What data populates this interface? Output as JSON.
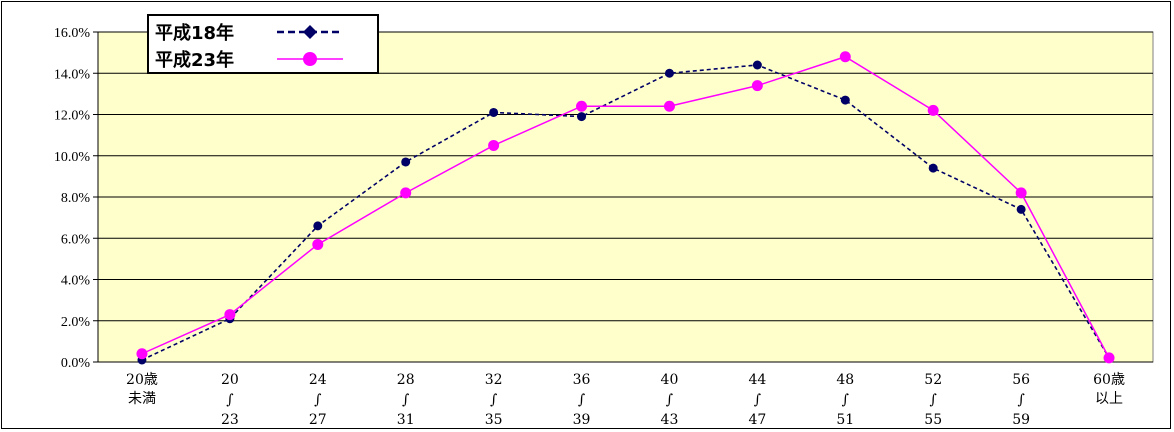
{
  "chart_data": {
    "type": "line",
    "categories": [
      [
        "20歳",
        "未満"
      ],
      [
        "20",
        "∫",
        "23"
      ],
      [
        "24",
        "∫",
        "27"
      ],
      [
        "28",
        "∫",
        "31"
      ],
      [
        "32",
        "∫",
        "35"
      ],
      [
        "36",
        "∫",
        "39"
      ],
      [
        "40",
        "∫",
        "43"
      ],
      [
        "44",
        "∫",
        "47"
      ],
      [
        "48",
        "∫",
        "51"
      ],
      [
        "52",
        "∫",
        "55"
      ],
      [
        "56",
        "∫",
        "59"
      ],
      [
        "60歳",
        "以上"
      ]
    ],
    "y_ticks": [
      "0.0%",
      "2.0%",
      "4.0%",
      "6.0%",
      "8.0%",
      "10.0%",
      "12.0%",
      "14.0%",
      "16.0%"
    ],
    "ylim": [
      0,
      16
    ],
    "unit": "%",
    "grid": true,
    "legend_position": "top-left",
    "series": [
      {
        "name": "平成18年",
        "color": "#000066",
        "line_style": "dashed",
        "marker": "diamond",
        "values": [
          0.1,
          2.1,
          6.6,
          9.7,
          12.1,
          11.9,
          14.0,
          14.4,
          12.7,
          9.4,
          7.4,
          0.2
        ]
      },
      {
        "name": "平成23年",
        "color": "#ff00ff",
        "line_style": "solid",
        "marker": "circle",
        "values": [
          0.4,
          2.3,
          5.7,
          8.2,
          10.5,
          12.4,
          12.4,
          13.4,
          14.8,
          12.2,
          8.2,
          0.2
        ]
      }
    ]
  },
  "colors": {
    "plot_background": "#ffffcc",
    "gridline": "#000000"
  }
}
